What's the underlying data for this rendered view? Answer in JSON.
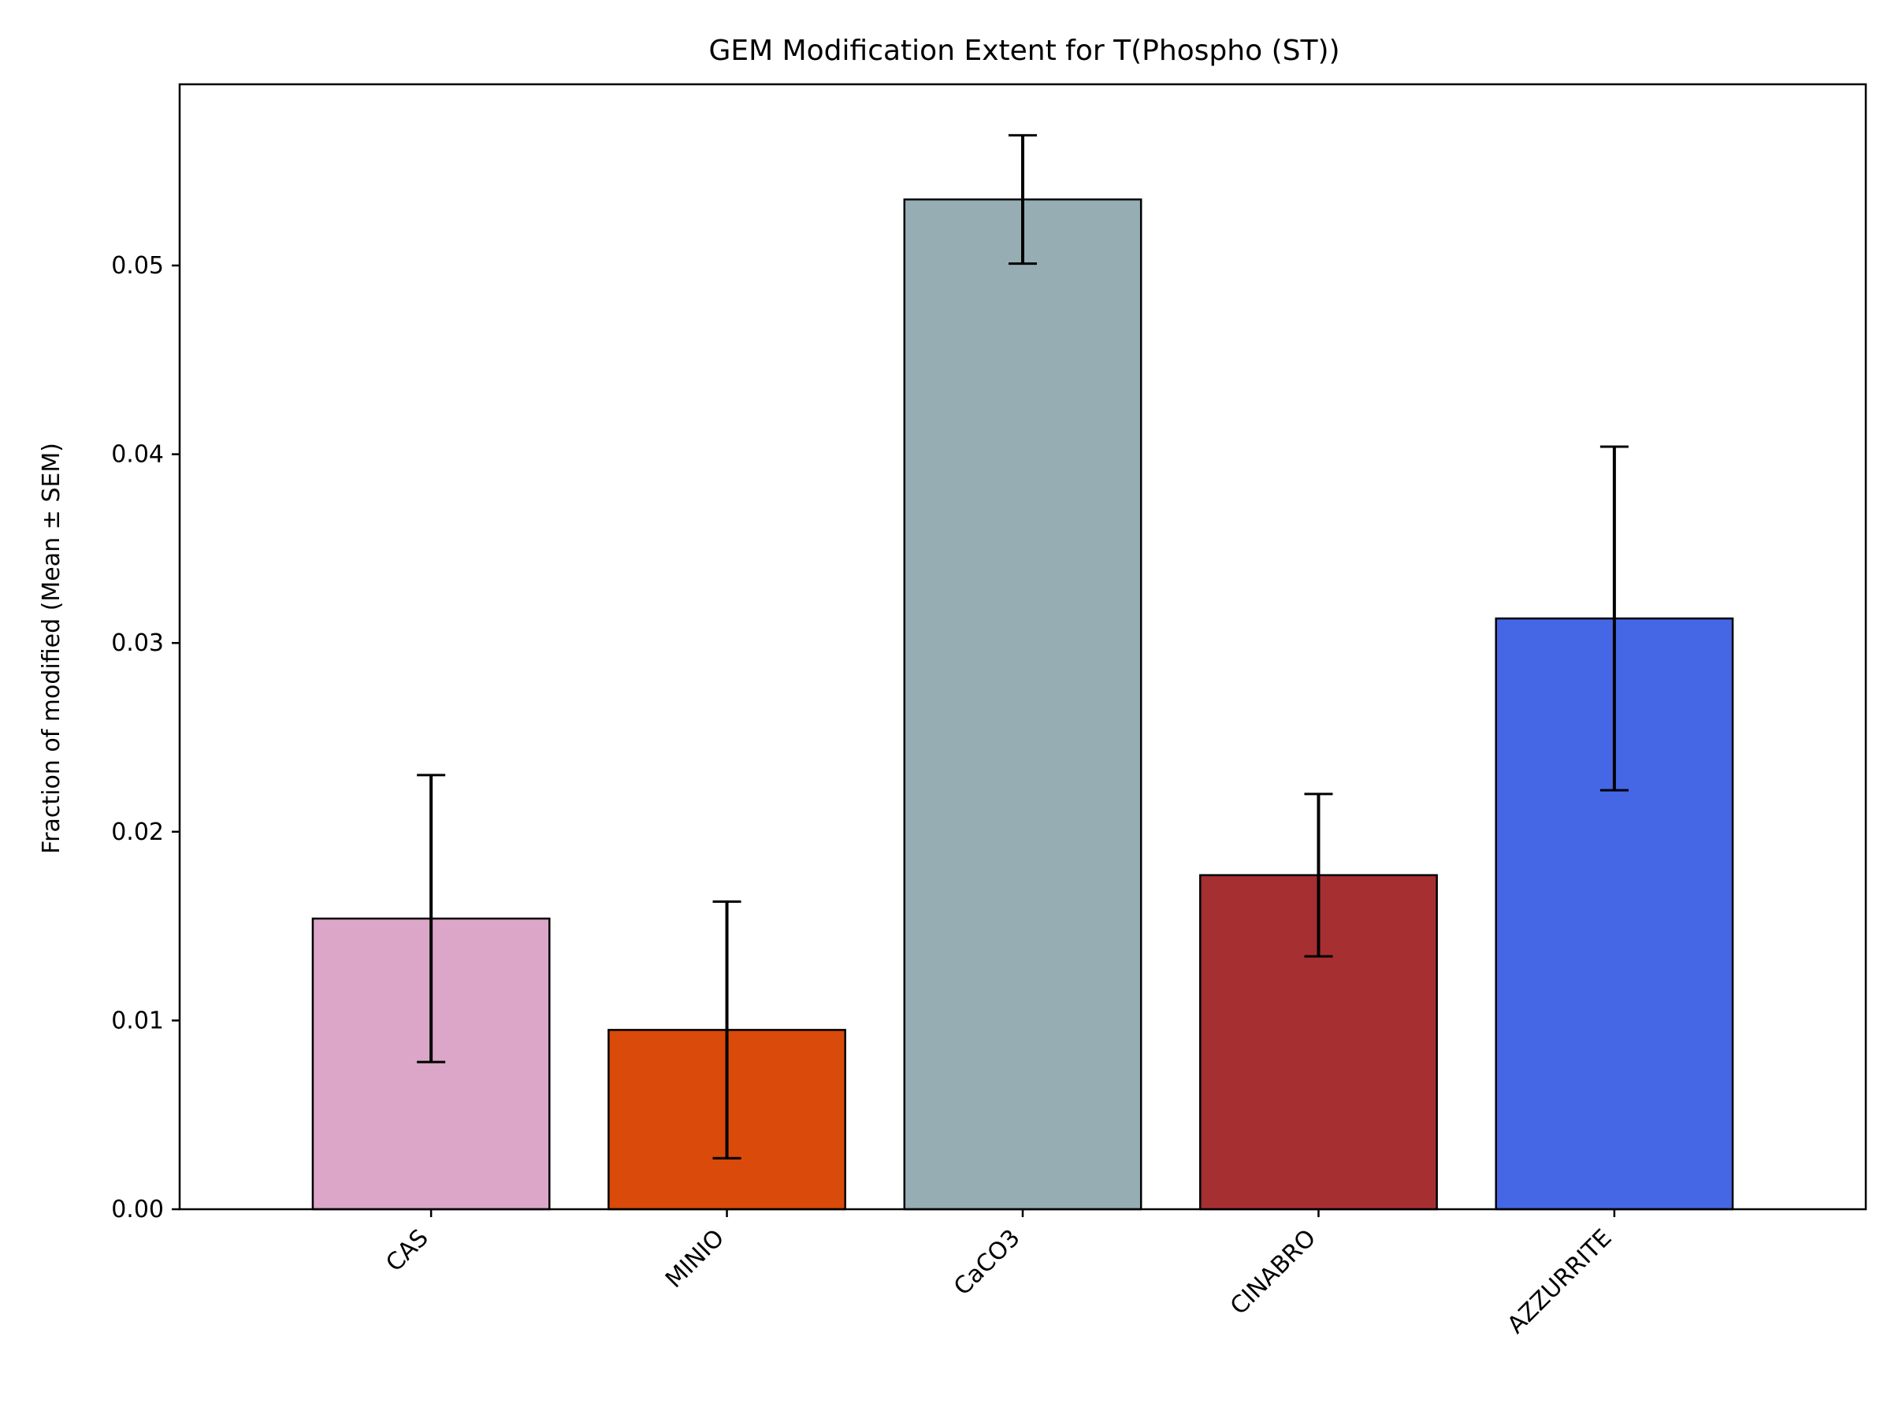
{
  "chart_data": {
    "type": "bar",
    "title": "GEM Modification Extent for T(Phospho (ST))",
    "xlabel": "",
    "ylabel": "Fraction of modified (Mean ± SEM)",
    "categories": [
      "CAS",
      "MINIO",
      "CaCO3",
      "CINABRO",
      "AZZURRITE"
    ],
    "values": [
      0.0154,
      0.0095,
      0.0535,
      0.0177,
      0.0313
    ],
    "errors": [
      0.0076,
      0.0068,
      0.0034,
      0.0043,
      0.0091
    ],
    "colors": [
      "#dba6c8",
      "#d94a0b",
      "#96adb4",
      "#a62f32",
      "#4567e6"
    ],
    "ylim": [
      0,
      0.0596
    ],
    "yticks": [
      0.0,
      0.01,
      0.02,
      0.03,
      0.04,
      0.05
    ],
    "ytick_labels": [
      "0.00",
      "0.01",
      "0.02",
      "0.03",
      "0.04",
      "0.05"
    ],
    "grid": false,
    "legend": "none"
  }
}
